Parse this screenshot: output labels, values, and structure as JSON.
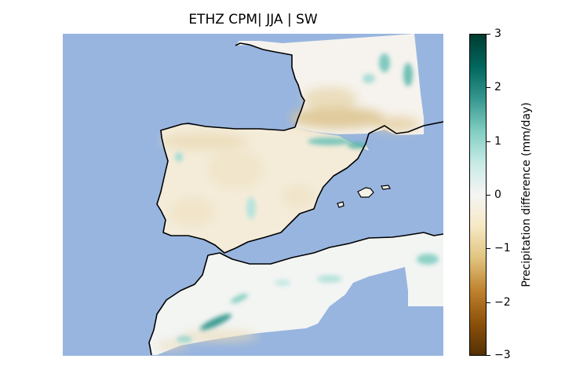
{
  "title": "ETHZ CPM| JJA | SW",
  "colorbar": {
    "label": "Precipitation difference (mm/day)",
    "ticks": [
      "3",
      "2",
      "1",
      "0",
      "−1",
      "−2",
      "−3"
    ],
    "range": [
      -3,
      3
    ],
    "colormap": "BrBG",
    "gradient_colors": [
      "#543005",
      "#8c510a",
      "#bf812d",
      "#dfc27d",
      "#f6e8c3",
      "#f5f5f5",
      "#c7eae5",
      "#80cdc1",
      "#35978f",
      "#01665e",
      "#003c30"
    ]
  },
  "map": {
    "region": "Iberian Peninsula, southern France, Balearic Islands and northwest Africa",
    "sea_color": "#98b5e0",
    "coastline_color": "#000000"
  }
}
